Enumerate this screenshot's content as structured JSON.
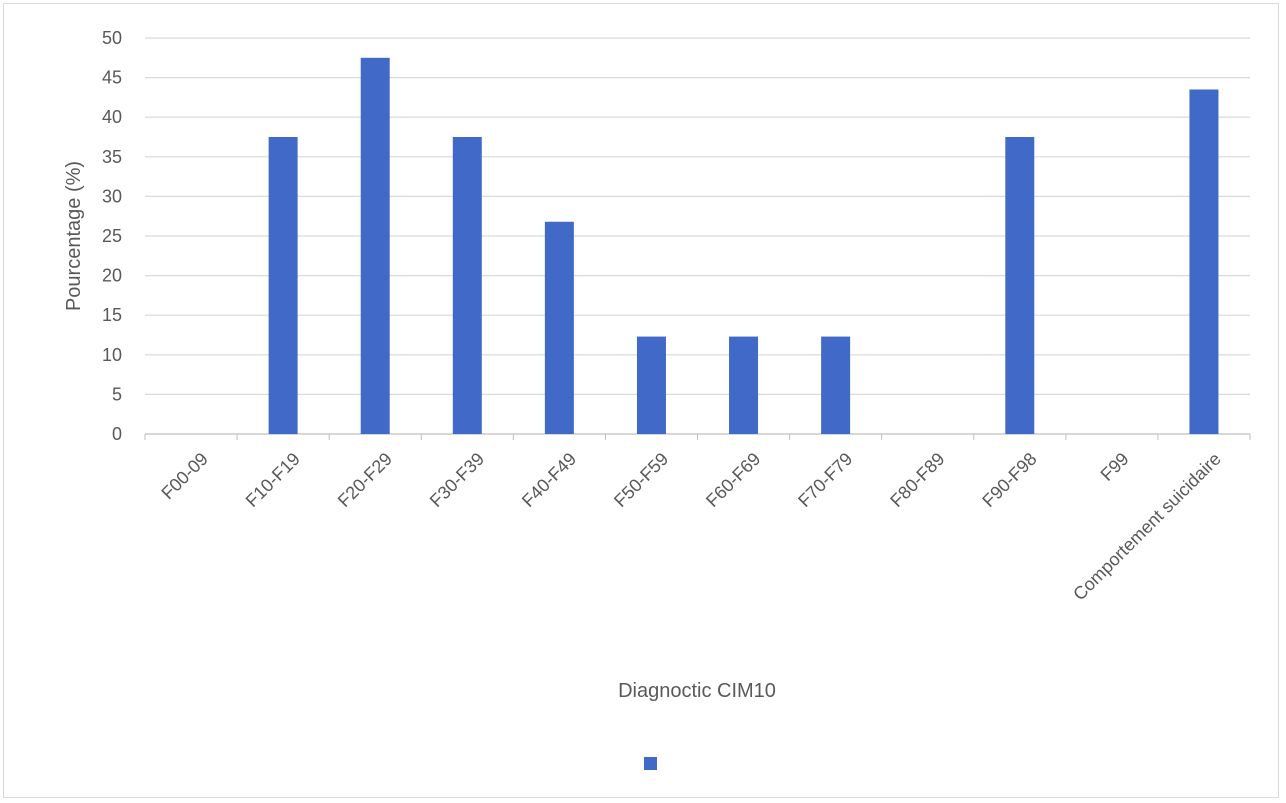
{
  "chart_data": {
    "type": "bar",
    "title": "",
    "xlabel": "Diagnoctic CIM10",
    "ylabel": "Pourcentage (%)",
    "ylim": [
      0,
      50
    ],
    "yticks": [
      0,
      5,
      10,
      15,
      20,
      25,
      30,
      35,
      40,
      45,
      50
    ],
    "grid": true,
    "legend": "bottom",
    "categories": [
      "F00-09",
      "F10-F19",
      "F20-F29",
      "F30-F39",
      "F40-F49",
      "F50-F59",
      "F60-F69",
      "F70-F79",
      "F80-F89",
      "F90-F98",
      "F99",
      "Comportement suicidaire"
    ],
    "series": [
      {
        "values": [
          0,
          37.5,
          47.5,
          37.5,
          26.8,
          12.3,
          12.3,
          12.3,
          0,
          37.5,
          0,
          43.5
        ],
        "color": "#4169c8"
      }
    ]
  }
}
